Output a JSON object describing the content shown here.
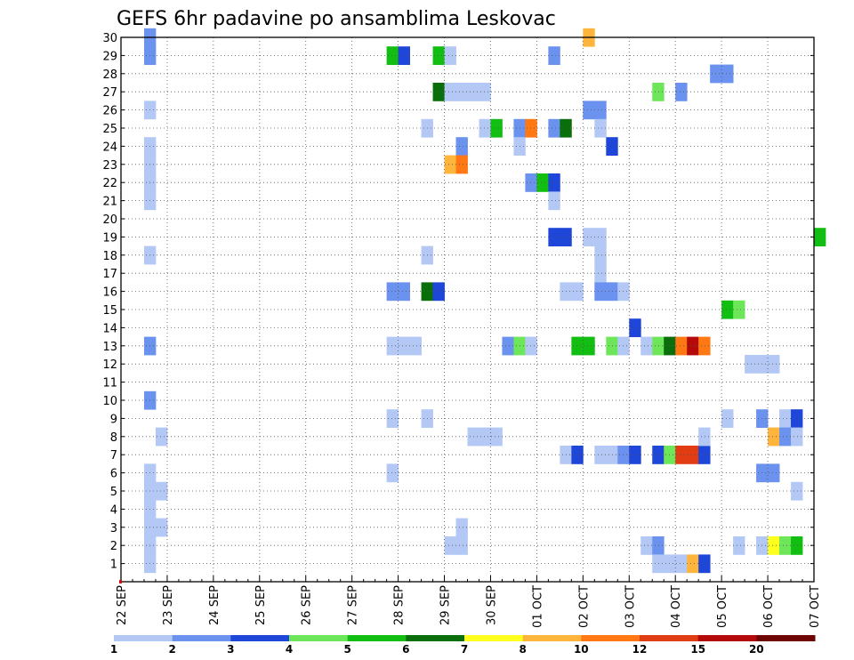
{
  "chart_data": {
    "type": "heatmap",
    "title": "GEFS 6hr padavine po ansamblima Leskovac",
    "x_tick_labels": [
      "22 SEP",
      "23 SEP",
      "24 SEP",
      "25 SEP",
      "26 SEP",
      "27 SEP",
      "28 SEP",
      "29 SEP",
      "30 SEP",
      "01 OCT",
      "02 OCT",
      "03 OCT",
      "04 OCT",
      "05 OCT",
      "06 OCT",
      "07 OCT"
    ],
    "x_range_days": [
      0,
      15
    ],
    "steps_per_day": 4,
    "y_tick_labels": [
      "1",
      "2",
      "3",
      "4",
      "5",
      "6",
      "7",
      "8",
      "9",
      "10",
      "11",
      "12",
      "13",
      "14",
      "15",
      "16",
      "17",
      "18",
      "19",
      "20",
      "21",
      "22",
      "23",
      "24",
      "25",
      "26",
      "27",
      "28",
      "29",
      "30"
    ],
    "y_range": [
      0,
      30
    ],
    "grid": true,
    "colorbar": {
      "labels": [
        "1",
        "2",
        "3",
        "4",
        "5",
        "6",
        "7",
        "8",
        "10",
        "12",
        "15",
        "20"
      ],
      "colors": [
        "#b4c8f5",
        "#6b92ef",
        "#1e46d8",
        "#6ee65a",
        "#12be12",
        "#0a6e0a",
        "#ffff1e",
        "#ffb43c",
        "#ff7814",
        "#e13c14",
        "#b40a0a",
        "#6e0505"
      ]
    },
    "cells": [
      [
        2,
        30,
        2
      ],
      [
        2,
        29,
        2
      ],
      [
        2,
        26,
        1
      ],
      [
        2,
        24,
        1
      ],
      [
        2,
        23,
        1
      ],
      [
        2,
        22,
        1
      ],
      [
        2,
        21,
        1
      ],
      [
        2,
        18,
        1
      ],
      [
        2,
        13,
        2
      ],
      [
        2,
        10,
        2
      ],
      [
        2,
        6,
        1
      ],
      [
        2,
        5,
        1
      ],
      [
        2,
        4,
        1
      ],
      [
        2,
        3,
        1
      ],
      [
        2,
        2,
        1
      ],
      [
        2,
        1,
        1
      ],
      [
        3,
        8,
        1
      ],
      [
        3,
        5,
        1
      ],
      [
        3,
        3,
        1
      ],
      [
        23,
        29,
        5
      ],
      [
        24,
        29,
        3
      ],
      [
        27,
        29,
        5
      ],
      [
        28,
        29,
        1
      ],
      [
        27,
        27,
        6
      ],
      [
        28,
        27,
        1
      ],
      [
        29,
        27,
        1
      ],
      [
        30,
        27,
        1
      ],
      [
        31,
        27,
        1
      ],
      [
        26,
        25,
        1
      ],
      [
        31,
        25,
        1
      ],
      [
        32,
        25,
        5
      ],
      [
        34,
        25,
        2
      ],
      [
        35,
        25,
        9
      ],
      [
        37,
        25,
        2
      ],
      [
        38,
        25,
        6
      ],
      [
        29,
        24,
        2
      ],
      [
        34,
        24,
        1
      ],
      [
        28,
        23,
        8
      ],
      [
        29,
        23,
        9
      ],
      [
        35,
        22,
        2
      ],
      [
        36,
        22,
        5
      ],
      [
        37,
        22,
        3
      ],
      [
        37,
        21,
        1
      ],
      [
        26,
        18,
        1
      ],
      [
        37,
        19,
        3
      ],
      [
        38,
        19,
        3
      ],
      [
        40,
        19,
        1
      ],
      [
        41,
        19,
        1
      ],
      [
        41,
        18,
        1
      ],
      [
        41,
        17,
        1
      ],
      [
        23,
        16,
        2
      ],
      [
        24,
        16,
        2
      ],
      [
        26,
        16,
        6
      ],
      [
        27,
        16,
        3
      ],
      [
        38,
        16,
        1
      ],
      [
        39,
        16,
        1
      ],
      [
        41,
        16,
        2
      ],
      [
        42,
        16,
        2
      ],
      [
        43,
        16,
        1
      ],
      [
        23,
        13,
        1
      ],
      [
        24,
        13,
        1
      ],
      [
        25,
        13,
        1
      ],
      [
        33,
        13,
        2
      ],
      [
        34,
        13,
        4
      ],
      [
        35,
        13,
        1
      ],
      [
        39,
        13,
        5
      ],
      [
        40,
        13,
        5
      ],
      [
        42,
        13,
        4
      ],
      [
        43,
        13,
        1
      ],
      [
        45,
        13,
        1
      ],
      [
        46,
        13,
        4
      ],
      [
        47,
        13,
        6
      ],
      [
        48,
        13,
        9
      ],
      [
        49,
        13,
        11
      ],
      [
        50,
        13,
        9
      ],
      [
        23,
        9,
        1
      ],
      [
        26,
        9,
        1
      ],
      [
        30,
        8,
        1
      ],
      [
        31,
        8,
        1
      ],
      [
        32,
        8,
        1
      ],
      [
        23,
        6,
        1
      ],
      [
        29,
        3,
        1
      ],
      [
        28,
        2,
        1
      ],
      [
        29,
        2,
        1
      ],
      [
        38,
        7,
        1
      ],
      [
        39,
        7,
        3
      ],
      [
        41,
        7,
        1
      ],
      [
        42,
        7,
        1
      ],
      [
        43,
        7,
        2
      ],
      [
        44,
        7,
        3
      ],
      [
        46,
        7,
        3
      ],
      [
        47,
        7,
        4
      ],
      [
        48,
        7,
        10
      ],
      [
        49,
        7,
        10
      ],
      [
        50,
        7,
        3
      ],
      [
        45,
        2,
        1
      ],
      [
        46,
        2,
        2
      ],
      [
        46,
        1,
        1
      ],
      [
        47,
        1,
        1
      ],
      [
        48,
        1,
        1
      ],
      [
        49,
        1,
        8
      ],
      [
        50,
        1,
        3
      ],
      [
        37,
        29,
        2
      ],
      [
        40,
        30,
        8
      ],
      [
        40,
        26,
        2
      ],
      [
        41,
        26,
        2
      ],
      [
        41,
        25,
        1
      ],
      [
        42,
        24,
        3
      ],
      [
        46,
        27,
        4
      ],
      [
        48,
        27,
        2
      ],
      [
        51,
        28,
        2
      ],
      [
        52,
        28,
        2
      ],
      [
        52,
        15,
        5
      ],
      [
        53,
        15,
        4
      ],
      [
        54,
        12,
        1
      ],
      [
        55,
        12,
        1
      ],
      [
        56,
        12,
        1
      ],
      [
        52,
        9,
        1
      ],
      [
        55,
        9,
        2
      ],
      [
        57,
        9,
        1
      ],
      [
        58,
        9,
        3
      ],
      [
        56,
        8,
        8
      ],
      [
        57,
        8,
        2
      ],
      [
        58,
        8,
        1
      ],
      [
        50,
        8,
        1
      ],
      [
        55,
        6,
        2
      ],
      [
        56,
        6,
        2
      ],
      [
        58,
        5,
        1
      ],
      [
        53,
        2,
        1
      ],
      [
        55,
        2,
        1
      ],
      [
        56,
        2,
        7
      ],
      [
        57,
        2,
        4
      ],
      [
        58,
        2,
        5
      ],
      [
        60,
        19,
        5
      ],
      [
        44,
        14,
        3
      ]
    ]
  }
}
